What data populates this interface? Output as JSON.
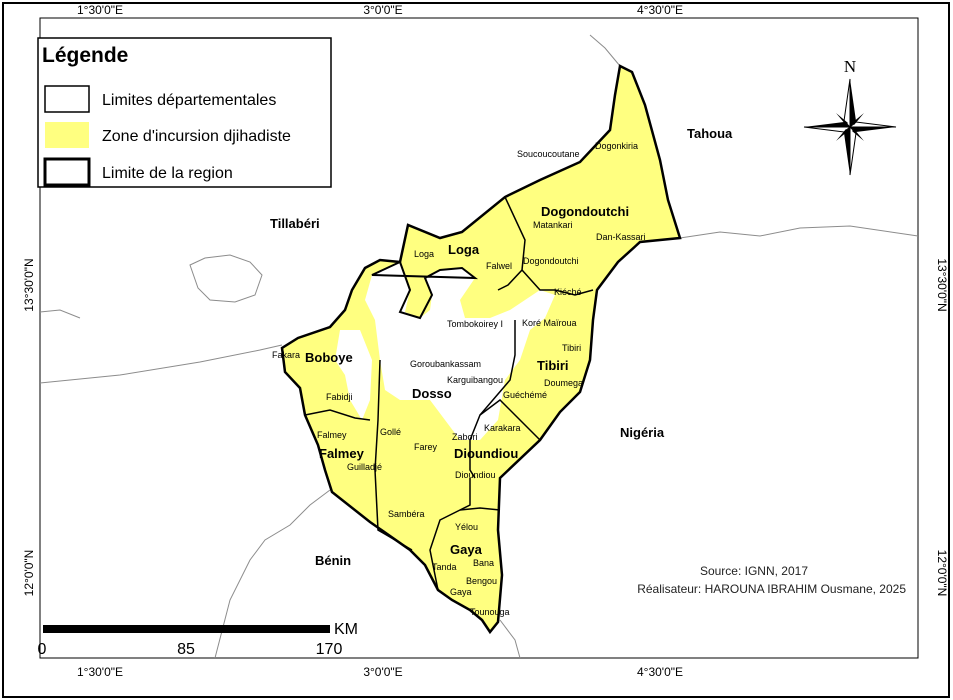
{
  "graticule": {
    "top": [
      "1°30'0\"E",
      "3°0'0\"E",
      "4°30'0\"E"
    ],
    "bottom": [
      "1°30'0\"E",
      "3°0'0\"E",
      "4°30'0\"E"
    ],
    "left": [
      "13°30'0\"N",
      "12°0'0\"N"
    ],
    "right": [
      "13°30'0\"N",
      "12°0'0\"N"
    ]
  },
  "legend": {
    "title": "Légende",
    "items": [
      {
        "label": "Limites départementales",
        "fill": "#ffffff"
      },
      {
        "label": "Zone d'incursion djihadiste",
        "fill": "#ffff80"
      },
      {
        "label": "Limite de la region",
        "fill": "#ffffff"
      }
    ]
  },
  "colors": {
    "incursion": "#ffff80",
    "border": "#000000",
    "neighbor_line": "#8c8c8c"
  },
  "neighbors": [
    "Tahoua",
    "Tillabéri",
    "Nigéria",
    "Bénin"
  ],
  "departments": [
    "Loga",
    "Dogondoutchi",
    "Boboye",
    "Dosso",
    "Tibiri",
    "Falmey",
    "Dioundiou",
    "Gaya"
  ],
  "communes": [
    "Soucoucoutane",
    "Dogonkiria",
    "Matankari",
    "Dan-Kassari",
    "Loga",
    "Falwel",
    "Dogondoutchi",
    "Kiéché",
    "Tombokoirey I",
    "Koré Maïroua",
    "Tibiri",
    "Fakara",
    "Goroubankassam",
    "Karguibangou",
    "Doumega",
    "Fabidji",
    "Guéchémé",
    "Falmey",
    "Gollé",
    "Zabori",
    "Karakara",
    "Farey",
    "Guilladjé",
    "Dioundiou",
    "Sambéra",
    "Yélou",
    "Tanda",
    "Bana",
    "Bengou",
    "Gaya",
    "Tounouga"
  ],
  "north_arrow": {
    "label": "N"
  },
  "scale_bar": {
    "labels": [
      "0",
      "85",
      "170"
    ],
    "unit": "KM"
  },
  "source": "Source: IGNN, 2017",
  "author": "Réalisateur: HAROUNA IBRAHIM Ousmane, 2025"
}
